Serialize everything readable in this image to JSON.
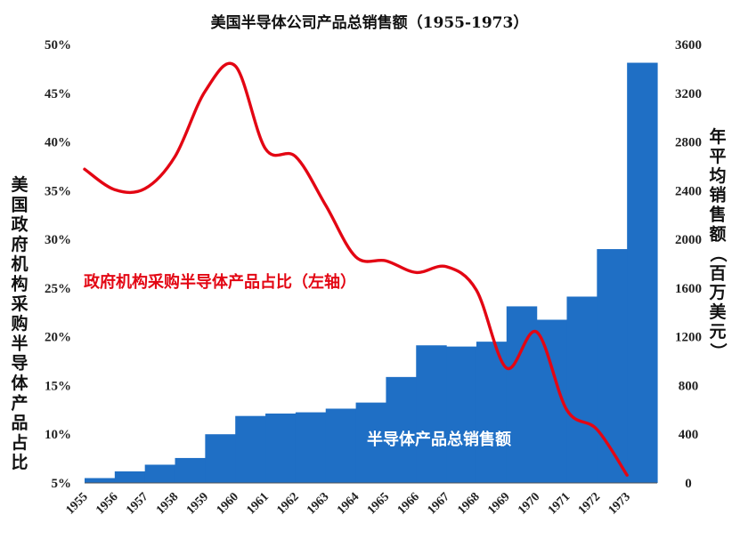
{
  "chart_data": {
    "type": "bar+line",
    "title": "美国半导体公司产品总销售额（1955-1973）",
    "categories": [
      "1955",
      "1956",
      "1957",
      "1958",
      "1959",
      "1960",
      "1961",
      "1962",
      "1963",
      "1964",
      "1965",
      "1966",
      "1967",
      "1968",
      "1969",
      "1970",
      "1971",
      "1972",
      "1973"
    ],
    "left_axis": {
      "label": "美国政府机构采购半导体产品占比",
      "ticks": [
        "5%",
        "10%",
        "15%",
        "20%",
        "25%",
        "30%",
        "35%",
        "40%",
        "45%",
        "50%"
      ],
      "ylim": [
        5,
        50
      ]
    },
    "right_axis": {
      "label": "年平均销售额（百万美元）",
      "ticks": [
        "0",
        "400",
        "800",
        "1200",
        "1600",
        "2000",
        "2400",
        "2800",
        "3200",
        "3600"
      ],
      "ylim": [
        0,
        3600
      ]
    },
    "series": [
      {
        "name": "半导体产品总销售额",
        "type": "bar",
        "axis": "right",
        "color": "#1f6fc5",
        "values": [
          40,
          95,
          150,
          205,
          400,
          550,
          570,
          580,
          610,
          660,
          870,
          1130,
          1120,
          1160,
          1450,
          1340,
          1530,
          1920,
          3450
        ]
      },
      {
        "name": "政府机构采购半导体产品占比（左轴）",
        "type": "line",
        "axis": "left",
        "color": "#e30613",
        "values": [
          37.2,
          35.1,
          35.2,
          38.5,
          45.2,
          47.8,
          39.3,
          38.5,
          33.5,
          28.2,
          27.8,
          26.6,
          27.2,
          24.8,
          16.8,
          20.5,
          12.5,
          10.5,
          5.8
        ]
      }
    ],
    "annotations": {
      "line_label": "政府机构采购半导体产品占比（左轴）",
      "bar_label": "半导体产品总销售额"
    },
    "grid": false
  }
}
